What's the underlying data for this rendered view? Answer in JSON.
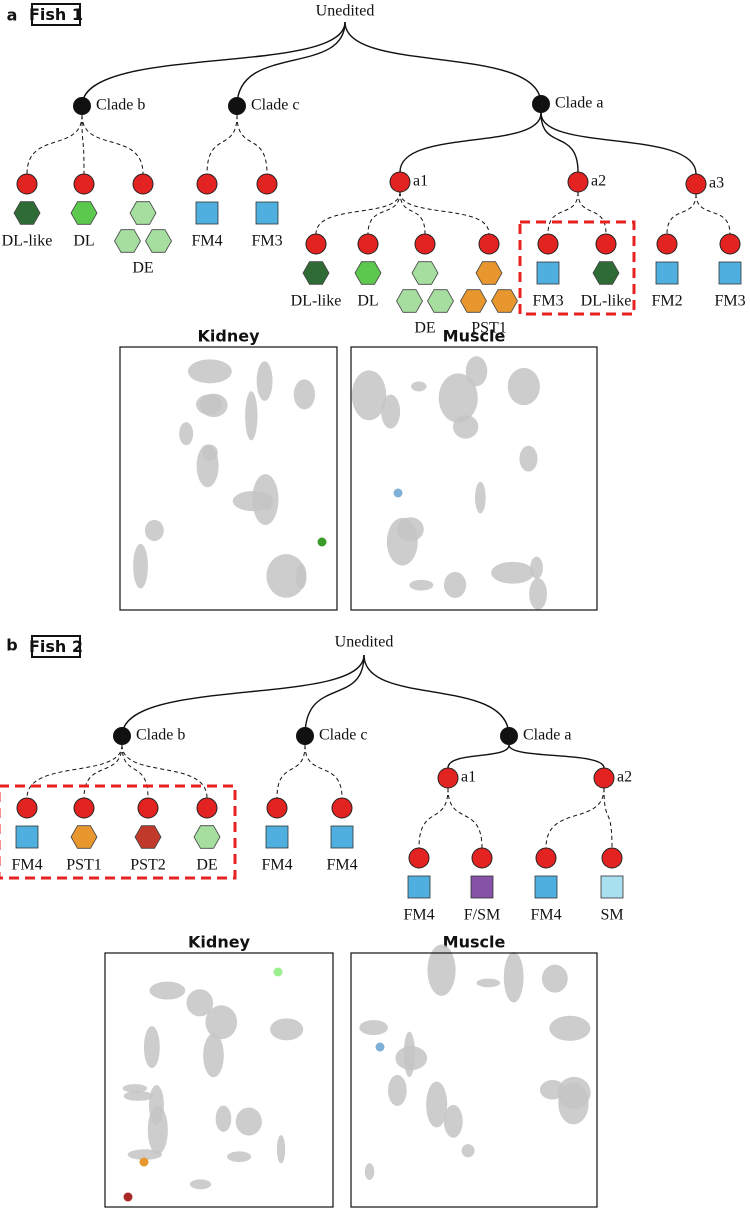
{
  "panels": [
    {
      "letter": "a",
      "fish": "Fish 1",
      "root": "Unedited",
      "clades": [
        {
          "label": "Clade b",
          "leaves": [
            {
              "label": "DL-like",
              "shape": "hexagon",
              "color": "#2e6b35"
            },
            {
              "label": "DL",
              "shape": "hexagon",
              "color": "#5cc84e"
            },
            {
              "label": "DE",
              "shape": "hexagon-cluster",
              "color": "#a6dea0"
            }
          ]
        },
        {
          "label": "Clade c",
          "leaves": [
            {
              "label": "FM4",
              "shape": "square",
              "color": "#4fb0e0"
            },
            {
              "label": "FM3",
              "shape": "square",
              "color": "#4fb0e0"
            }
          ]
        },
        {
          "label": "Clade a",
          "subclades": [
            {
              "label": "a1",
              "leaves": [
                {
                  "label": "DL-like",
                  "shape": "hexagon",
                  "color": "#2e6b35"
                },
                {
                  "label": "DL",
                  "shape": "hexagon",
                  "color": "#5cc84e"
                },
                {
                  "label": "DE",
                  "shape": "hexagon-cluster",
                  "color": "#a6dea0"
                },
                {
                  "label": "PST1",
                  "shape": "hexagon-cluster",
                  "color": "#e8962e"
                }
              ]
            },
            {
              "label": "a2",
              "highlighted": true,
              "leaves": [
                {
                  "label": "FM3",
                  "shape": "square",
                  "color": "#4fb0e0"
                },
                {
                  "label": "DL-like",
                  "shape": "hexagon",
                  "color": "#2e6b35"
                }
              ]
            },
            {
              "label": "a3",
              "leaves": [
                {
                  "label": "FM2",
                  "shape": "square",
                  "color": "#4fb0e0"
                },
                {
                  "label": "FM3",
                  "shape": "square",
                  "color": "#4fb0e0"
                }
              ]
            }
          ]
        }
      ],
      "plots": [
        {
          "title": "Kidney",
          "dots": [
            {
              "color": "#3a9a2a"
            }
          ]
        },
        {
          "title": "Muscle",
          "dots": [
            {
              "color": "#7fb0d8"
            }
          ]
        }
      ]
    },
    {
      "letter": "b",
      "fish": "Fish 2",
      "root": "Unedited",
      "clades": [
        {
          "label": "Clade b",
          "highlighted": true,
          "leaves": [
            {
              "label": "FM4",
              "shape": "square",
              "color": "#4fb0e0"
            },
            {
              "label": "PST1",
              "shape": "hexagon",
              "color": "#e8962e"
            },
            {
              "label": "PST2",
              "shape": "hexagon",
              "color": "#c0392b"
            },
            {
              "label": "DE",
              "shape": "hexagon",
              "color": "#a6dea0"
            }
          ]
        },
        {
          "label": "Clade c",
          "leaves": [
            {
              "label": "FM4",
              "shape": "square",
              "color": "#4fb0e0"
            },
            {
              "label": "FM4",
              "shape": "square",
              "color": "#4fb0e0"
            }
          ]
        },
        {
          "label": "Clade a",
          "subclades": [
            {
              "label": "a1",
              "leaves": [
                {
                  "label": "FM4",
                  "shape": "square",
                  "color": "#4fb0e0"
                },
                {
                  "label": "F/SM",
                  "shape": "square",
                  "color": "#8552a8"
                }
              ]
            },
            {
              "label": "a2",
              "leaves": [
                {
                  "label": "FM4",
                  "shape": "square",
                  "color": "#4fb0e0"
                },
                {
                  "label": "SM",
                  "shape": "square",
                  "color": "#a8e0f0"
                }
              ]
            }
          ]
        }
      ],
      "plots": [
        {
          "title": "Kidney",
          "dots": [
            {
              "color": "#9af08e"
            },
            {
              "color": "#e8962e"
            },
            {
              "color": "#a82828"
            }
          ]
        },
        {
          "title": "Muscle",
          "dots": [
            {
              "color": "#7fb0d8"
            }
          ]
        }
      ]
    }
  ]
}
